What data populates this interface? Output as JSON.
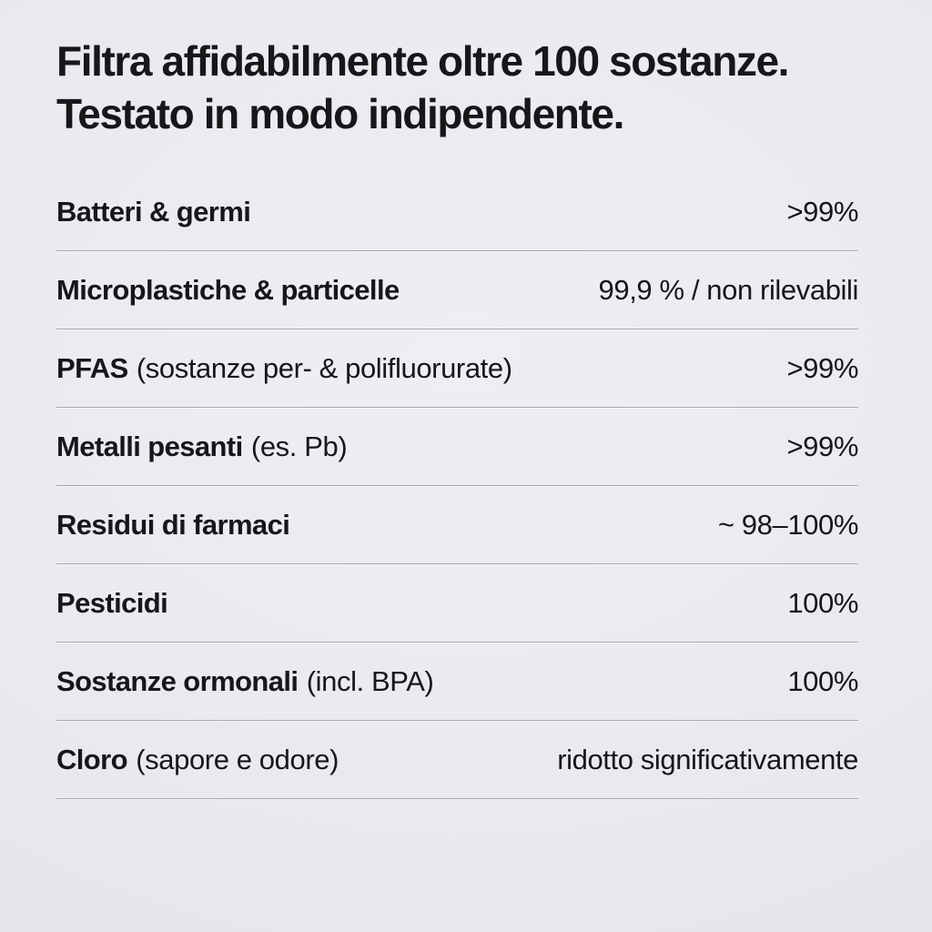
{
  "heading": {
    "line1": "Filtra affidabilmente oltre 100 sostanze.",
    "line2": "Testato in modo indipendente."
  },
  "table": {
    "rows": [
      {
        "label": "Batteri & germi",
        "note": "",
        "value": ">99%"
      },
      {
        "label": "Microplastiche & particelle",
        "note": "",
        "value": "99,9 % / non rilevabili"
      },
      {
        "label": "PFAS",
        "note": "(sostanze per- & polifluorurate)",
        "value": ">99%"
      },
      {
        "label": "Metalli pesanti",
        "note": "(es. Pb)",
        "value": ">99%"
      },
      {
        "label": "Residui di farmaci",
        "note": "",
        "value": "~ 98–100%"
      },
      {
        "label": "Pesticidi",
        "note": "",
        "value": "100%"
      },
      {
        "label": "Sostanze ormonali",
        "note": "(incl. BPA)",
        "value": "100%"
      },
      {
        "label": "Cloro",
        "note": "(sapore e odore)",
        "value": "ridotto significativamente"
      }
    ]
  },
  "colors": {
    "background": "#e9e9ee",
    "background_light": "#eeeef3",
    "background_dark": "#e2e2e9",
    "text": "#17171a",
    "divider": "#a7a7b0"
  }
}
